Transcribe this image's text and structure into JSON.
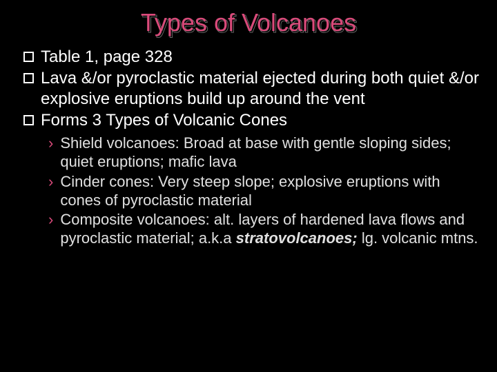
{
  "colors": {
    "background": "#000000",
    "title": "#d94a7a",
    "body_text": "#ffffff",
    "sub_text": "#e0e0e0",
    "sub_marker": "#d94a7a"
  },
  "typography": {
    "title_fontsize": 36,
    "bullet_fontsize": 24,
    "sub_fontsize": 22,
    "font_family": "Arial"
  },
  "title": "Types of Volcanoes",
  "bullets": [
    {
      "text": "Table 1, page 328"
    },
    {
      "text": "Lava &/or pyroclastic material  ejected during both quiet &/or explosive eruptions build up around the vent"
    },
    {
      "text": "Forms 3 Types of Volcanic Cones"
    }
  ],
  "sub_bullets": [
    {
      "text": "Shield volcanoes: Broad at base with gentle sloping sides; quiet eruptions; mafic lava"
    },
    {
      "text": "Cinder cones: Very steep slope; explosive eruptions with cones of pyroclastic material"
    },
    {
      "prefix": "Composite volcanoes: alt. layers of hardened lava flows and pyroclastic material; a.k.a ",
      "emph": "stratovolcanoes;",
      "suffix": " lg. volcanic mtns."
    }
  ]
}
